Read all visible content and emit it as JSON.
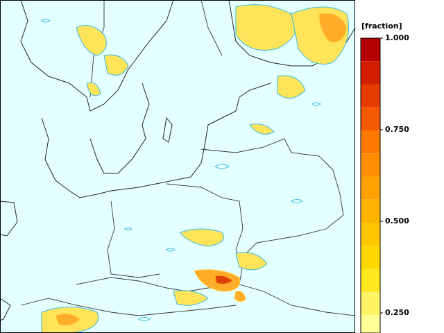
{
  "colorbar": {
    "label": "[fraction]",
    "ticks": [
      {
        "value": 1.0,
        "label": "1.000"
      },
      {
        "value": 0.75,
        "label": "0.750"
      },
      {
        "value": 0.5,
        "label": "0.500"
      },
      {
        "value": 0.25,
        "label": "0.250"
      }
    ],
    "colors": [
      "#b40000",
      "#d21e00",
      "#e63c00",
      "#f55a00",
      "#ff7800",
      "#ff8f00",
      "#ffa200",
      "#ffb400",
      "#ffc600",
      "#ffd800",
      "#ffe81e",
      "#fff464",
      "#ffff96"
    ]
  }
}
